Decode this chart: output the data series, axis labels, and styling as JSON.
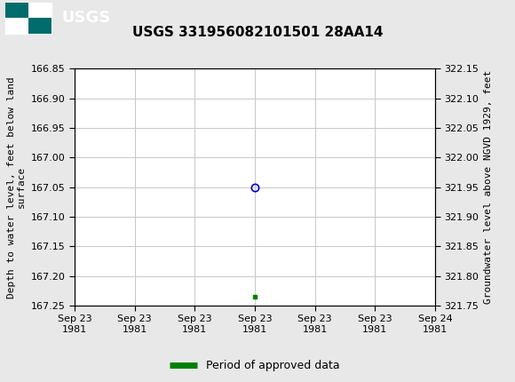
{
  "title": "USGS 331956082101501 28AA14",
  "ylabel_left": "Depth to water level, feet below land\nsurface",
  "ylabel_right": "Groundwater level above NGVD 1929, feet",
  "ylim_left": [
    166.85,
    167.25
  ],
  "ylim_right": [
    321.75,
    322.15
  ],
  "yticks_left": [
    166.85,
    166.9,
    166.95,
    167.0,
    167.05,
    167.1,
    167.15,
    167.2,
    167.25
  ],
  "yticks_right": [
    321.75,
    321.8,
    321.85,
    321.9,
    321.95,
    322.0,
    322.05,
    322.1,
    322.15
  ],
  "x_data": [
    0.5
  ],
  "y_data_circle": [
    167.05
  ],
  "y_data_square": [
    167.235
  ],
  "circle_color": "#0000cc",
  "square_color": "#008000",
  "legend_label": "Period of approved data",
  "legend_color": "#008000",
  "header_bg": "#006b6b",
  "bg_color": "#e8e8e8",
  "plot_bg": "#ffffff",
  "grid_color": "#c8c8c8",
  "font_color": "#000000",
  "title_fontsize": 11,
  "tick_fontsize": 8,
  "label_fontsize": 8,
  "x_labels": [
    "Sep 23\n1981",
    "Sep 23\n1981",
    "Sep 23\n1981",
    "Sep 23\n1981",
    "Sep 23\n1981",
    "Sep 23\n1981",
    "Sep 24\n1981"
  ]
}
